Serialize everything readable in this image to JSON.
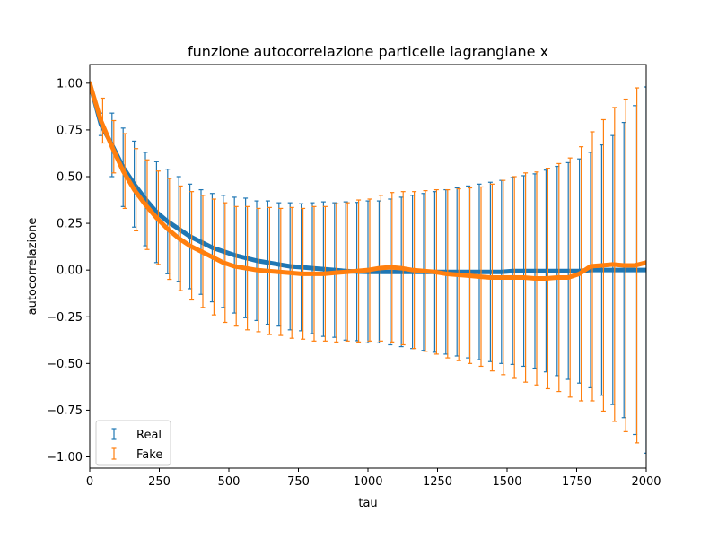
{
  "chart_data": {
    "type": "line",
    "title": "funzione autocorrelazione particelle lagrangiane x",
    "xlabel": "tau",
    "ylabel": "autocorrelazione",
    "xlim": [
      0,
      2000
    ],
    "ylim": [
      -1.06,
      1.1
    ],
    "xticks": [
      0,
      250,
      500,
      750,
      1000,
      1250,
      1500,
      1750,
      2000
    ],
    "xtick_labels": [
      "0",
      "250",
      "500",
      "750",
      "1000",
      "1250",
      "1500",
      "1750",
      "2000"
    ],
    "yticks": [
      -1.0,
      -0.75,
      -0.5,
      -0.25,
      0.0,
      0.25,
      0.5,
      0.75,
      1.0
    ],
    "ytick_labels": [
      "−1.00",
      "−0.75",
      "−0.50",
      "−0.25",
      "0.00",
      "0.25",
      "0.50",
      "0.75",
      "1.00"
    ],
    "grid": false,
    "legend_position": "lower-left",
    "series": [
      {
        "name": "Real",
        "color": "#1f77b4",
        "style": "errorbar",
        "x": [
          0,
          40,
          80,
          120,
          160,
          200,
          240,
          280,
          320,
          360,
          400,
          440,
          480,
          520,
          560,
          600,
          640,
          680,
          720,
          760,
          800,
          840,
          880,
          920,
          960,
          1000,
          1040,
          1080,
          1120,
          1160,
          1200,
          1240,
          1280,
          1320,
          1360,
          1400,
          1440,
          1480,
          1520,
          1560,
          1600,
          1640,
          1680,
          1720,
          1760,
          1800,
          1840,
          1880,
          1920,
          1960,
          2000
        ],
        "y": [
          1.0,
          0.78,
          0.67,
          0.55,
          0.46,
          0.38,
          0.31,
          0.26,
          0.22,
          0.18,
          0.15,
          0.12,
          0.1,
          0.08,
          0.065,
          0.05,
          0.04,
          0.03,
          0.02,
          0.015,
          0.01,
          0.005,
          0.0,
          -0.005,
          -0.008,
          -0.01,
          -0.01,
          -0.01,
          -0.01,
          -0.01,
          -0.01,
          -0.01,
          -0.01,
          -0.01,
          -0.01,
          -0.01,
          -0.01,
          -0.01,
          -0.005,
          -0.005,
          -0.005,
          -0.005,
          -0.005,
          -0.005,
          -0.005,
          0.0,
          0.0,
          0.0,
          0.0,
          0.0,
          0.0
        ],
        "err": [
          0.0,
          0.06,
          0.17,
          0.21,
          0.23,
          0.25,
          0.27,
          0.28,
          0.28,
          0.28,
          0.28,
          0.29,
          0.3,
          0.31,
          0.32,
          0.32,
          0.33,
          0.33,
          0.34,
          0.34,
          0.35,
          0.36,
          0.36,
          0.37,
          0.37,
          0.38,
          0.38,
          0.39,
          0.4,
          0.41,
          0.42,
          0.43,
          0.44,
          0.45,
          0.46,
          0.47,
          0.48,
          0.49,
          0.5,
          0.51,
          0.52,
          0.54,
          0.56,
          0.58,
          0.6,
          0.63,
          0.67,
          0.72,
          0.79,
          0.88,
          0.98
        ]
      },
      {
        "name": "Fake",
        "color": "#ff7f0e",
        "style": "errorbar",
        "x": [
          0,
          40,
          80,
          120,
          160,
          200,
          240,
          280,
          320,
          360,
          400,
          440,
          480,
          520,
          560,
          600,
          640,
          680,
          720,
          760,
          800,
          840,
          880,
          920,
          960,
          1000,
          1040,
          1080,
          1120,
          1160,
          1200,
          1240,
          1280,
          1320,
          1360,
          1400,
          1440,
          1480,
          1520,
          1560,
          1600,
          1640,
          1680,
          1720,
          1760,
          1800,
          1840,
          1880,
          1920,
          1960,
          2000
        ],
        "y": [
          1.0,
          0.8,
          0.66,
          0.53,
          0.43,
          0.35,
          0.28,
          0.22,
          0.17,
          0.13,
          0.1,
          0.07,
          0.04,
          0.02,
          0.01,
          0.0,
          -0.005,
          -0.01,
          -0.015,
          -0.02,
          -0.02,
          -0.02,
          -0.015,
          -0.01,
          -0.005,
          0.0,
          0.01,
          0.015,
          0.01,
          0.0,
          -0.005,
          -0.01,
          -0.02,
          -0.025,
          -0.03,
          -0.035,
          -0.04,
          -0.04,
          -0.04,
          -0.04,
          -0.045,
          -0.045,
          -0.04,
          -0.04,
          -0.02,
          0.02,
          0.025,
          0.03,
          0.025,
          0.025,
          0.04
        ],
        "err": [
          0.0,
          0.12,
          0.14,
          0.2,
          0.22,
          0.24,
          0.25,
          0.27,
          0.28,
          0.29,
          0.3,
          0.31,
          0.32,
          0.32,
          0.33,
          0.33,
          0.34,
          0.34,
          0.35,
          0.35,
          0.36,
          0.36,
          0.37,
          0.37,
          0.38,
          0.38,
          0.39,
          0.4,
          0.41,
          0.42,
          0.43,
          0.44,
          0.45,
          0.46,
          0.47,
          0.48,
          0.5,
          0.52,
          0.54,
          0.56,
          0.57,
          0.59,
          0.61,
          0.64,
          0.68,
          0.72,
          0.78,
          0.84,
          0.89,
          0.95,
          0.98
        ]
      }
    ]
  }
}
